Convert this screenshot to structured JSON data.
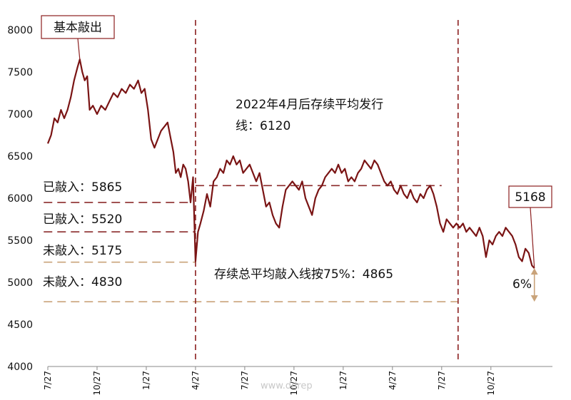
{
  "colors": {
    "line": "#7a1414",
    "marker_line": "#8b1f1f",
    "ref_dark": "#8b2a2a",
    "ref_tan": "#c9a37a",
    "arrow": "#c9a37a",
    "callout_border": "#8b1f1f"
  },
  "chart_data": {
    "type": "line",
    "title": "",
    "xlabel": "",
    "ylabel": "",
    "ylim": [
      4000,
      8000
    ],
    "yticks": [
      "8000",
      "7500",
      "7000",
      "6500",
      "6000",
      "5500",
      "5000",
      "4500",
      "4000"
    ],
    "x_range": [
      0,
      61.5
    ],
    "xticks": [
      {
        "x": 0,
        "label": "7/27"
      },
      {
        "x": 6,
        "label": "10/27"
      },
      {
        "x": 12,
        "label": "1/27"
      },
      {
        "x": 18,
        "label": "4/27"
      },
      {
        "x": 24,
        "label": "7/27"
      },
      {
        "x": 30,
        "label": "10/27"
      },
      {
        "x": 36,
        "label": "1/27"
      },
      {
        "x": 42,
        "label": "4/27"
      },
      {
        "x": 48,
        "label": "7/27"
      },
      {
        "x": 54,
        "label": "10/27"
      }
    ],
    "x_unit": "months since 7/27",
    "series": [
      {
        "name": "",
        "points": [
          [
            0,
            6650
          ],
          [
            0.4,
            6750
          ],
          [
            0.8,
            6950
          ],
          [
            1.2,
            6900
          ],
          [
            1.6,
            7050
          ],
          [
            2.0,
            6950
          ],
          [
            2.4,
            7050
          ],
          [
            2.8,
            7200
          ],
          [
            3.2,
            7400
          ],
          [
            3.6,
            7550
          ],
          [
            3.9,
            7650
          ],
          [
            4.2,
            7500
          ],
          [
            4.5,
            7400
          ],
          [
            4.8,
            7450
          ],
          [
            5.1,
            7050
          ],
          [
            5.5,
            7100
          ],
          [
            6.0,
            7000
          ],
          [
            6.5,
            7100
          ],
          [
            7.0,
            7050
          ],
          [
            7.5,
            7150
          ],
          [
            8.0,
            7250
          ],
          [
            8.5,
            7200
          ],
          [
            9.0,
            7300
          ],
          [
            9.5,
            7250
          ],
          [
            10.0,
            7350
          ],
          [
            10.5,
            7300
          ],
          [
            11.0,
            7400
          ],
          [
            11.4,
            7250
          ],
          [
            11.8,
            7300
          ],
          [
            12.2,
            7050
          ],
          [
            12.6,
            6700
          ],
          [
            13.0,
            6600
          ],
          [
            13.4,
            6700
          ],
          [
            13.8,
            6800
          ],
          [
            14.2,
            6850
          ],
          [
            14.6,
            6900
          ],
          [
            15.0,
            6700
          ],
          [
            15.3,
            6550
          ],
          [
            15.6,
            6300
          ],
          [
            15.9,
            6350
          ],
          [
            16.2,
            6250
          ],
          [
            16.5,
            6400
          ],
          [
            16.8,
            6350
          ],
          [
            17.1,
            6200
          ],
          [
            17.4,
            5950
          ],
          [
            17.7,
            6250
          ],
          [
            18.0,
            5250
          ],
          [
            18.3,
            5600
          ],
          [
            18.6,
            5700
          ],
          [
            19.0,
            5850
          ],
          [
            19.4,
            6050
          ],
          [
            19.8,
            5900
          ],
          [
            20.2,
            6200
          ],
          [
            20.6,
            6250
          ],
          [
            21.0,
            6350
          ],
          [
            21.4,
            6300
          ],
          [
            21.8,
            6450
          ],
          [
            22.2,
            6400
          ],
          [
            22.6,
            6500
          ],
          [
            23.0,
            6400
          ],
          [
            23.4,
            6450
          ],
          [
            23.8,
            6300
          ],
          [
            24.2,
            6350
          ],
          [
            24.6,
            6400
          ],
          [
            25.0,
            6300
          ],
          [
            25.4,
            6200
          ],
          [
            25.8,
            6300
          ],
          [
            26.2,
            6100
          ],
          [
            26.6,
            5900
          ],
          [
            27.0,
            5950
          ],
          [
            27.4,
            5800
          ],
          [
            27.8,
            5700
          ],
          [
            28.2,
            5650
          ],
          [
            28.6,
            5900
          ],
          [
            29.0,
            6100
          ],
          [
            29.4,
            6150
          ],
          [
            29.8,
            6200
          ],
          [
            30.2,
            6150
          ],
          [
            30.6,
            6100
          ],
          [
            31.0,
            6200
          ],
          [
            31.4,
            6000
          ],
          [
            31.8,
            5900
          ],
          [
            32.2,
            5800
          ],
          [
            32.6,
            6000
          ],
          [
            33.0,
            6100
          ],
          [
            33.4,
            6150
          ],
          [
            33.8,
            6250
          ],
          [
            34.2,
            6300
          ],
          [
            34.6,
            6350
          ],
          [
            35.0,
            6300
          ],
          [
            35.4,
            6400
          ],
          [
            35.8,
            6300
          ],
          [
            36.2,
            6350
          ],
          [
            36.6,
            6200
          ],
          [
            37.0,
            6250
          ],
          [
            37.4,
            6200
          ],
          [
            37.8,
            6300
          ],
          [
            38.2,
            6350
          ],
          [
            38.6,
            6450
          ],
          [
            39.0,
            6400
          ],
          [
            39.4,
            6350
          ],
          [
            39.8,
            6450
          ],
          [
            40.2,
            6400
          ],
          [
            40.6,
            6300
          ],
          [
            41.0,
            6200
          ],
          [
            41.4,
            6150
          ],
          [
            41.8,
            6200
          ],
          [
            42.2,
            6100
          ],
          [
            42.6,
            6050
          ],
          [
            43.0,
            6150
          ],
          [
            43.4,
            6050
          ],
          [
            43.8,
            6000
          ],
          [
            44.2,
            6100
          ],
          [
            44.6,
            6000
          ],
          [
            45.0,
            5950
          ],
          [
            45.4,
            6050
          ],
          [
            45.8,
            6000
          ],
          [
            46.2,
            6100
          ],
          [
            46.6,
            6150
          ],
          [
            47.0,
            6050
          ],
          [
            47.4,
            5900
          ],
          [
            47.8,
            5700
          ],
          [
            48.2,
            5600
          ],
          [
            48.6,
            5750
          ],
          [
            49.0,
            5700
          ],
          [
            49.4,
            5650
          ],
          [
            49.8,
            5700
          ],
          [
            50.2,
            5650
          ],
          [
            50.6,
            5700
          ],
          [
            51.0,
            5600
          ],
          [
            51.4,
            5650
          ],
          [
            51.8,
            5600
          ],
          [
            52.2,
            5550
          ],
          [
            52.6,
            5650
          ],
          [
            53.0,
            5550
          ],
          [
            53.4,
            5300
          ],
          [
            53.8,
            5500
          ],
          [
            54.2,
            5450
          ],
          [
            54.6,
            5550
          ],
          [
            55.0,
            5600
          ],
          [
            55.4,
            5550
          ],
          [
            55.8,
            5650
          ],
          [
            56.2,
            5600
          ],
          [
            56.6,
            5550
          ],
          [
            57.0,
            5450
          ],
          [
            57.4,
            5300
          ],
          [
            57.8,
            5250
          ],
          [
            58.2,
            5400
          ],
          [
            58.6,
            5350
          ],
          [
            59.0,
            5200
          ],
          [
            59.3,
            5168
          ]
        ]
      }
    ],
    "event_lines_x": [
      18,
      50
    ],
    "reference_lines": [
      {
        "value": 6150,
        "style": "dark",
        "x_from": 18,
        "x_to": 48
      },
      {
        "value": 5950,
        "style": "dark",
        "x_from": -0.5,
        "x_to": 17.4
      },
      {
        "value": 5600,
        "style": "dark",
        "x_from": -0.5,
        "x_to": 18
      },
      {
        "value": 5240,
        "style": "tan",
        "x_from": -0.5,
        "x_to": 18
      },
      {
        "value": 4770,
        "style": "tan",
        "x_from": -0.5,
        "x_to": 50
      }
    ],
    "arrow": {
      "x": 59.3,
      "from": 5168,
      "to": 4770
    }
  },
  "annotations": {
    "top_callout": "基本敲出",
    "top_callout_target": {
      "x": 3.9,
      "y": 7650
    },
    "mid_text_line1": "2022年4月后存续平均发行",
    "mid_text_line2": "线：6120",
    "label_ko_high": "已敲入：5865",
    "label_ko_low": "已敲入：5520",
    "label_not_high": "未敲入：5175",
    "label_not_low": "未敲入：4830",
    "total_avg": "存续总平均敲入线按75%：4865",
    "end_value": "5168",
    "end_target": {
      "x": 59.3,
      "y": 5168
    },
    "pct": "6%"
  },
  "watermark": "www.ddrep"
}
